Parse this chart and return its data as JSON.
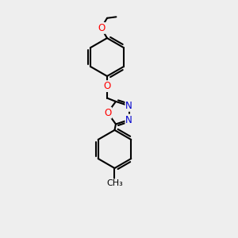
{
  "background_color": "#eeeeee",
  "bond_color": "#000000",
  "oxygen_color": "#ff0000",
  "nitrogen_color": "#0000cd",
  "line_width": 1.5,
  "font_size_atom": 8.5,
  "fig_width": 3.0,
  "fig_height": 3.0,
  "dpi": 100,
  "xlim": [
    0,
    10
  ],
  "ylim": [
    0,
    10
  ]
}
